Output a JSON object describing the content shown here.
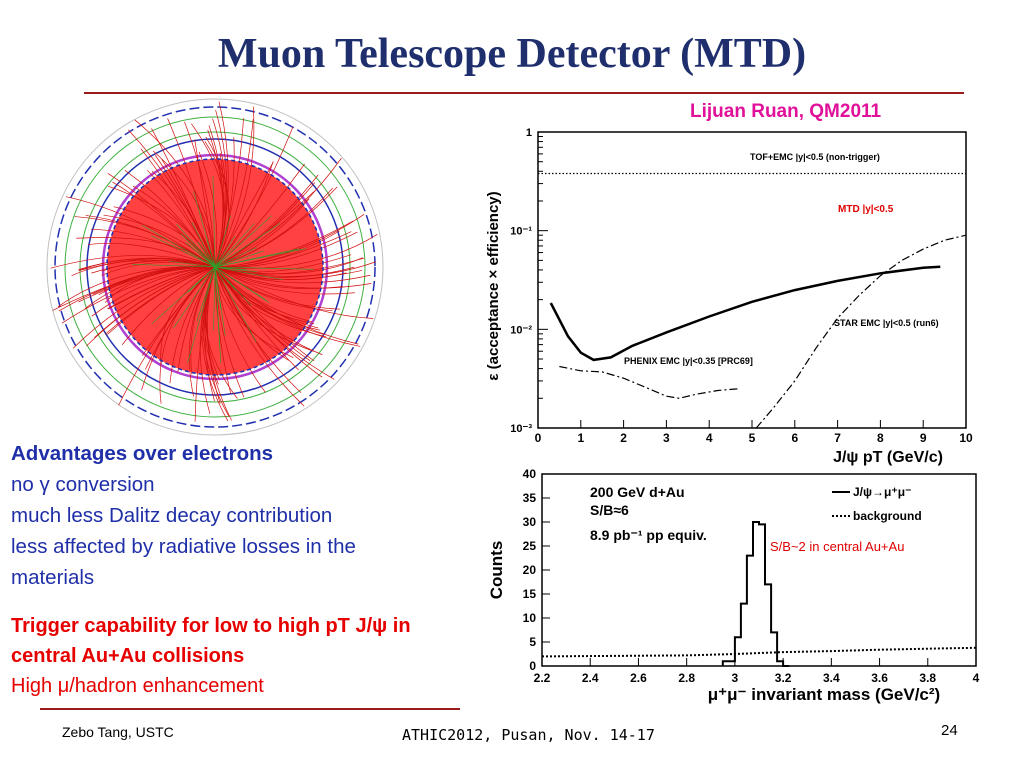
{
  "slide": {
    "title": "Muon Telescope Detector (MTD)",
    "credit": "Lijuan Ruan, QM2011",
    "advantages_heading": "Advantages over electrons",
    "advantages": [
      "no γ conversion",
      "much less Dalitz decay contribution",
      "less affected by radiative losses in the",
      "materials"
    ],
    "trigger_line1": "Trigger capability for low to high pT J/ψ in",
    "trigger_line2": "central Au+Au collisions",
    "enhancement": "High μ/hadron enhancement",
    "footer_left": "Zebo Tang, USTC",
    "footer_center": "ATHIC2012, Pusan, Nov. 14-17",
    "page_number": "24"
  },
  "colors": {
    "title": "#1f2f6e",
    "accent": "#e0109a",
    "text": "#1f2fa8",
    "highlight": "#e60000"
  },
  "chart_data": [
    {
      "type": "line",
      "ylabel": "ε (acceptance × efficiency)",
      "xlabel": "J/ψ pT (GeV/c)",
      "xlim": [
        0,
        10
      ],
      "ylim": [
        0.001,
        1
      ],
      "yscale": "log",
      "x_ticks": [
        "0",
        "1",
        "2",
        "3",
        "4",
        "5",
        "6",
        "7",
        "8",
        "9",
        "10"
      ],
      "y_ticks": [
        "1",
        "10⁻¹",
        "10⁻²",
        "10⁻³"
      ],
      "series": [
        {
          "name": "TOF+EMC |y|<0.5 (non-trigger)",
          "style": "dotted",
          "x": [
            0,
            10
          ],
          "y": [
            0.38,
            0.38
          ]
        },
        {
          "name": "MTD |y|<0.5",
          "style": "solid",
          "color": "#e00000",
          "x": [
            0.3,
            0.7,
            1.0,
            1.3,
            1.7,
            2.2,
            3,
            4,
            5,
            6,
            7,
            8,
            9,
            9.4
          ],
          "y": [
            0.0185,
            0.0085,
            0.0058,
            0.0049,
            0.0052,
            0.0068,
            0.0093,
            0.0135,
            0.019,
            0.025,
            0.031,
            0.037,
            0.042,
            0.043
          ]
        },
        {
          "name": "STAR EMC |y|<0.5 (run6)",
          "style": "dash-dot",
          "x": [
            5.1,
            5.5,
            6,
            6.5,
            7,
            7.5,
            8,
            8.5,
            9,
            9.5,
            10
          ],
          "y": [
            0.001,
            0.0016,
            0.003,
            0.0065,
            0.013,
            0.022,
            0.035,
            0.05,
            0.065,
            0.08,
            0.09
          ]
        },
        {
          "name": "PHENIX EMC |y|<0.35 [PRC69]",
          "style": "dash-dot",
          "x": [
            0.5,
            1,
            1.5,
            2,
            2.5,
            3,
            3.3,
            3.7,
            4.2,
            4.7
          ],
          "y": [
            0.0042,
            0.0038,
            0.0037,
            0.0032,
            0.0026,
            0.0021,
            0.002,
            0.0022,
            0.0024,
            0.0025
          ]
        }
      ]
    },
    {
      "type": "histogram",
      "ylabel": "Counts",
      "xlabel": "μ⁺μ⁻ invariant mass (GeV/c²)",
      "xlim": [
        2.2,
        4
      ],
      "ylim": [
        0,
        40
      ],
      "x_ticks": [
        "2.2",
        "2.4",
        "2.6",
        "2.8",
        "3",
        "3.2",
        "3.4",
        "3.6",
        "3.8",
        "4"
      ],
      "y_ticks": [
        "0",
        "5",
        "10",
        "15",
        "20",
        "25",
        "30",
        "35",
        "40"
      ],
      "annotations": [
        "200 GeV d+Au",
        "S/B≈6",
        "8.9 pb⁻¹ pp equiv.",
        "S/B~2 in central Au+Au"
      ],
      "series": [
        {
          "name": "J/ψ→μ⁺μ⁻",
          "style": "solid",
          "bin_edges": [
            2.95,
            3.0,
            3.025,
            3.05,
            3.075,
            3.1,
            3.125,
            3.15,
            3.175,
            3.2,
            3.225
          ],
          "values": [
            1,
            6,
            13,
            23,
            30,
            29.5,
            17,
            7,
            1,
            0
          ]
        },
        {
          "name": "background",
          "style": "dotted",
          "x": [
            2.2,
            2.5,
            2.8,
            3.0,
            3.2,
            3.4,
            3.6,
            3.8,
            4.0
          ],
          "y": [
            2.0,
            2.1,
            2.2,
            2.5,
            2.9,
            3.1,
            3.4,
            3.6,
            3.8
          ]
        }
      ]
    }
  ]
}
